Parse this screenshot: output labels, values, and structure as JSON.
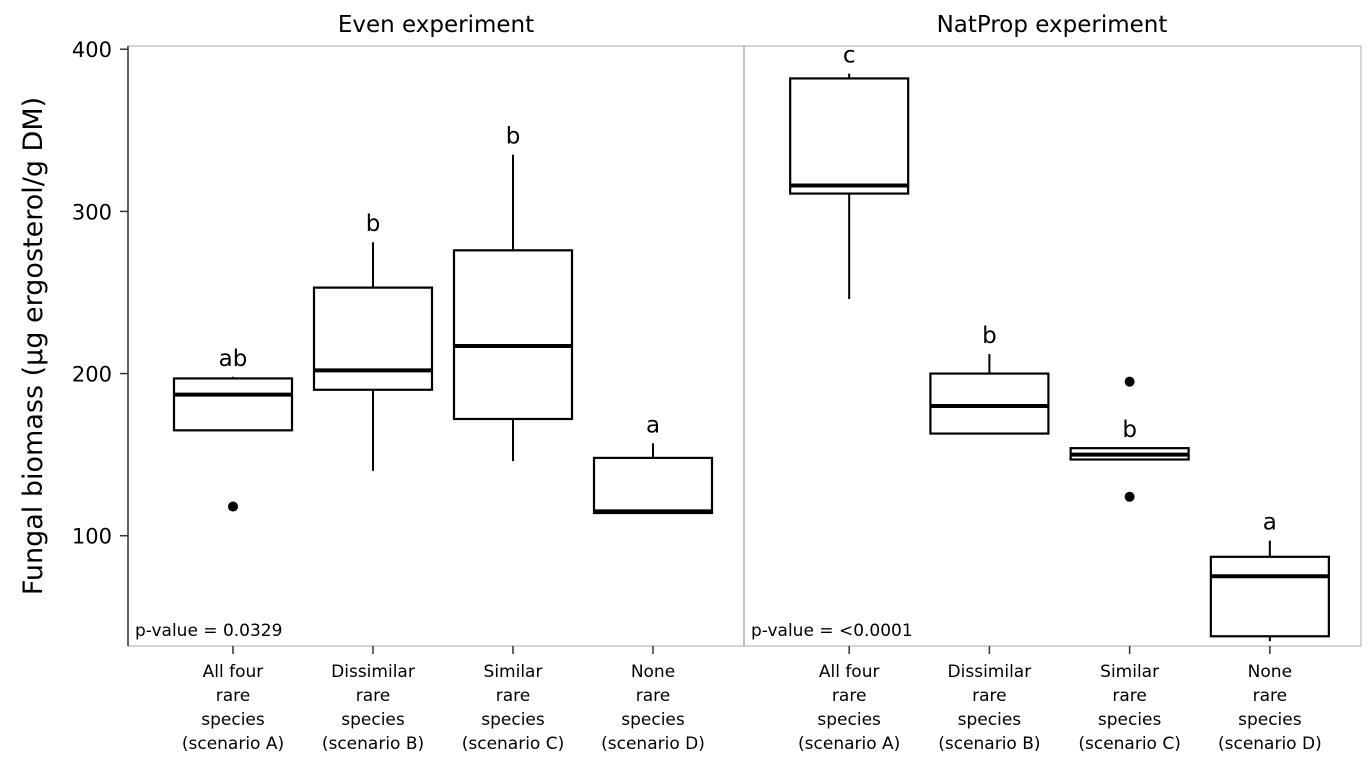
{
  "chart_data": {
    "type": "box",
    "ylabel": "Fungal biomass (µg ergosterol/g DM)",
    "ylim": [
      32,
      402
    ],
    "yticks": [
      100,
      200,
      300,
      400
    ],
    "categories": [
      [
        "All four",
        "rare",
        "species",
        "(scenario A)"
      ],
      [
        "Dissimilar",
        "rare",
        "species",
        "(scenario B)"
      ],
      [
        "Similar",
        "rare",
        "species",
        "(scenario C)"
      ],
      [
        "None",
        "rare",
        "species",
        "(scenario D)"
      ]
    ],
    "panels": [
      {
        "title": "Even experiment",
        "annotation": "p-value = 0.0329",
        "boxes": [
          {
            "letter": "ab",
            "low": 165,
            "q1": 165,
            "median": 187,
            "q3": 197,
            "high": 198,
            "outliers": [
              118
            ]
          },
          {
            "letter": "b",
            "low": 140,
            "q1": 190,
            "median": 202,
            "q3": 253,
            "high": 281,
            "outliers": []
          },
          {
            "letter": "b",
            "low": 146,
            "q1": 172,
            "median": 217,
            "q3": 276,
            "high": 335,
            "outliers": []
          },
          {
            "letter": "a",
            "low": 114,
            "q1": 114,
            "median": 115,
            "q3": 148,
            "high": 157,
            "outliers": []
          }
        ]
      },
      {
        "title": "NatProp experiment",
        "annotation": "p-value = <0.0001",
        "boxes": [
          {
            "letter": "c",
            "low": 246,
            "q1": 311,
            "median": 316,
            "q3": 382,
            "high": 385,
            "outliers": []
          },
          {
            "letter": "b",
            "low": 163,
            "q1": 163,
            "median": 180,
            "q3": 200,
            "high": 212,
            "outliers": []
          },
          {
            "letter": "b",
            "low": 147,
            "q1": 147,
            "median": 150,
            "q3": 154,
            "high": 154,
            "outliers": [
              195,
              124
            ]
          },
          {
            "letter": "a",
            "low": 35,
            "q1": 38,
            "median": 75,
            "q3": 87,
            "high": 97,
            "outliers": []
          }
        ]
      }
    ]
  }
}
